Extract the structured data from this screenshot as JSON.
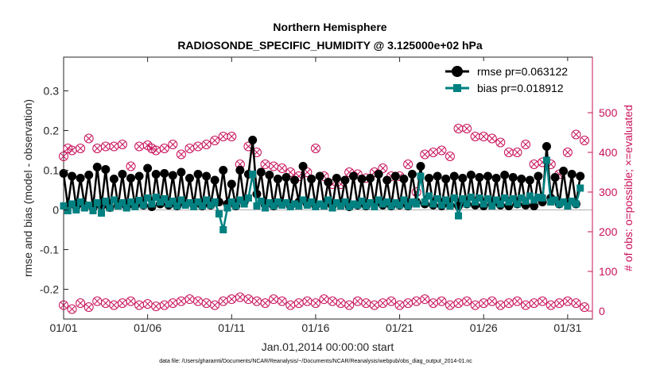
{
  "chart_data": {
    "type": "line",
    "title_line1": "Northern Hemisphere",
    "title_line2": "RADIOSONDE_SPECIFIC_HUMIDITY @ 3.125000e+02 hPa",
    "ylabel_left": "rmse and bias (model - observation)",
    "ylabel_right": "# of obs: o=possible; ×=evaluated",
    "xlabel": "Jan.01,2014 00:00:00 start",
    "footer": "data file: /Users/gharamti/Documents/NCAR/Reanalysis/~/Documents/NCAR/Reanalysis/webpub/obs_diag_output_2014-01.nc",
    "xlim": [
      0,
      31
    ],
    "ylim_left": [
      -0.275,
      0.385
    ],
    "ylim_right": [
      -20,
      640
    ],
    "x_tick_labels": [
      "01/01",
      "01/06",
      "01/11",
      "01/16",
      "01/21",
      "01/26",
      "01/31"
    ],
    "x_tick_positions": [
      0,
      5,
      10,
      15,
      20,
      25,
      30
    ],
    "y_left_ticks": [
      "-0.2",
      "-0.1",
      "0",
      "0.1",
      "0.2",
      "0.3"
    ],
    "y_left_tick_values": [
      -0.2,
      -0.1,
      0,
      0.1,
      0.2,
      0.3
    ],
    "y_right_ticks": [
      "0",
      "100",
      "200",
      "300",
      "400",
      "500"
    ],
    "y_right_tick_values": [
      0,
      100,
      200,
      300,
      400,
      500
    ],
    "legend_rmse": "rmse pr=0.063122",
    "legend_bias": "bias pr=0.018912",
    "colors": {
      "rmse": "#000000",
      "bias": "#008080",
      "obs": "#c8105a",
      "zero": "#b0b0b0"
    },
    "series": [
      {
        "name": "rmse",
        "x": [
          0,
          0.25,
          0.5,
          0.75,
          1,
          1.25,
          1.5,
          1.75,
          2,
          2.25,
          2.5,
          2.75,
          3,
          3.25,
          3.5,
          3.75,
          4,
          4.25,
          4.5,
          4.75,
          5,
          5.25,
          5.5,
          5.75,
          6,
          6.25,
          6.5,
          6.75,
          7,
          7.25,
          7.5,
          7.75,
          8,
          8.25,
          8.5,
          8.75,
          9,
          9.25,
          9.5,
          9.75,
          10,
          10.25,
          10.5,
          10.75,
          11,
          11.25,
          11.5,
          11.75,
          12,
          12.25,
          12.5,
          12.75,
          13,
          13.25,
          13.5,
          13.75,
          14,
          14.25,
          14.5,
          14.75,
          15,
          15.25,
          15.5,
          15.75,
          16,
          16.25,
          16.5,
          16.75,
          17,
          17.25,
          17.5,
          17.75,
          18,
          18.25,
          18.5,
          18.75,
          19,
          19.25,
          19.5,
          19.75,
          20,
          20.25,
          20.5,
          20.75,
          21,
          21.25,
          21.5,
          21.75,
          22,
          22.25,
          22.5,
          22.75,
          23,
          23.25,
          23.5,
          23.75,
          24,
          24.25,
          24.5,
          24.75,
          25,
          25.25,
          25.5,
          25.75,
          26,
          26.25,
          26.5,
          26.75,
          27,
          27.25,
          27.5,
          27.75,
          28,
          28.25,
          28.5,
          28.75,
          29,
          29.25,
          29.5,
          29.75,
          30,
          30.25,
          30.5,
          30.75
        ],
        "values": [
          0.092,
          0.01,
          0.085,
          0.008,
          0.08,
          0.012,
          0.088,
          0.005,
          0.108,
          0.01,
          0.102,
          0.006,
          0.078,
          0.012,
          0.09,
          0.008,
          0.08,
          0.01,
          0.085,
          0.012,
          0.105,
          0.008,
          0.09,
          0.015,
          0.092,
          0.012,
          0.087,
          0.01,
          0.095,
          0.015,
          0.08,
          0.012,
          0.09,
          0.01,
          0.085,
          0.012,
          0.075,
          0.02,
          0.1,
          0.015,
          0.065,
          0.01,
          0.1,
          0.02,
          0.09,
          0.176,
          0.04,
          0.095,
          0.012,
          0.088,
          0.01,
          0.078,
          0.015,
          0.082,
          0.01,
          0.075,
          0.02,
          0.11,
          0.015,
          0.078,
          0.01,
          0.085,
          0.012,
          0.07,
          0.01,
          0.08,
          0.015,
          0.075,
          0.008,
          0.085,
          0.012,
          0.078,
          0.01,
          0.08,
          0.015,
          0.09,
          0.012,
          0.075,
          0.01,
          0.085,
          0.012,
          0.078,
          0.01,
          0.09,
          0.02,
          0.11,
          0.015,
          0.08,
          0.012,
          0.085,
          0.01,
          0.078,
          0.012,
          0.085,
          0.01,
          0.08,
          0.015,
          0.088,
          0.012,
          0.082,
          0.01,
          0.085,
          0.015,
          0.08,
          0.012,
          0.088,
          0.01,
          0.082,
          0.015,
          0.078,
          0.012,
          0.075,
          0.01,
          0.085,
          0.02,
          0.16,
          0.03,
          0.082,
          0.015,
          0.098,
          0.02,
          0.09,
          0.015,
          0.085
        ]
      },
      {
        "name": "bias",
        "x": [
          0,
          0.25,
          0.5,
          0.75,
          1,
          1.25,
          1.5,
          1.75,
          2,
          2.25,
          2.5,
          2.75,
          3,
          3.25,
          3.5,
          3.75,
          4,
          4.25,
          4.5,
          4.75,
          5,
          5.25,
          5.5,
          5.75,
          6,
          6.25,
          6.5,
          6.75,
          7,
          7.25,
          7.5,
          7.75,
          8,
          8.25,
          8.5,
          8.75,
          9,
          9.25,
          9.5,
          9.75,
          10,
          10.25,
          10.5,
          10.75,
          11,
          11.25,
          11.5,
          11.75,
          12,
          12.25,
          12.5,
          12.75,
          13,
          13.25,
          13.5,
          13.75,
          14,
          14.25,
          14.5,
          14.75,
          15,
          15.25,
          15.5,
          15.75,
          16,
          16.25,
          16.5,
          16.75,
          17,
          17.25,
          17.5,
          17.75,
          18,
          18.25,
          18.5,
          18.75,
          19,
          19.25,
          19.5,
          19.75,
          20,
          20.25,
          20.5,
          20.75,
          21,
          21.25,
          21.5,
          21.75,
          22,
          22.25,
          22.5,
          22.75,
          23,
          23.25,
          23.5,
          23.75,
          24,
          24.25,
          24.5,
          24.75,
          25,
          25.25,
          25.5,
          25.75,
          26,
          26.25,
          26.5,
          26.75,
          27,
          27.25,
          27.5,
          27.75,
          28,
          28.25,
          28.5,
          28.75,
          29,
          29.25,
          29.5,
          29.75,
          30,
          30.25,
          30.5,
          30.75
        ],
        "values": [
          0.01,
          -0.002,
          0.015,
          0.0,
          0.02,
          0.005,
          0.012,
          -0.002,
          0.018,
          -0.008,
          0.022,
          0.005,
          0.025,
          0.01,
          0.018,
          0.005,
          0.02,
          0.008,
          0.024,
          0.012,
          0.03,
          0.015,
          0.032,
          0.02,
          0.028,
          0.015,
          0.022,
          0.01,
          0.025,
          0.012,
          0.018,
          0.008,
          0.02,
          0.01,
          0.025,
          0.012,
          0.02,
          -0.01,
          -0.05,
          0.005,
          0.02,
          0.01,
          0.025,
          0.015,
          0.03,
          0.09,
          0.01,
          0.022,
          0.005,
          0.018,
          0.01,
          0.02,
          0.012,
          0.018,
          0.008,
          0.015,
          0.01,
          0.025,
          0.012,
          0.02,
          0.008,
          0.015,
          0.01,
          0.025,
          0.005,
          0.018,
          0.01,
          0.02,
          0.008,
          0.015,
          0.012,
          0.022,
          0.01,
          0.018,
          0.008,
          0.025,
          0.015,
          0.02,
          0.01,
          0.018,
          0.012,
          0.025,
          0.01,
          0.02,
          0.015,
          0.085,
          0.02,
          0.035,
          0.015,
          0.028,
          0.012,
          0.025,
          0.01,
          0.03,
          -0.015,
          0.028,
          0.015,
          0.032,
          0.02,
          0.03,
          0.015,
          0.028,
          0.01,
          0.025,
          0.015,
          0.03,
          0.02,
          0.028,
          0.015,
          0.03,
          0.022,
          0.035,
          0.025,
          0.032,
          0.03,
          0.125,
          0.02,
          0.025,
          0.015,
          0.02,
          0.01,
          0.022,
          0.015,
          0.055
        ]
      },
      {
        "name": "obs possible (upper)",
        "x": [
          0,
          0.25,
          0.5,
          1,
          1.5,
          2,
          2.5,
          3,
          3.5,
          4,
          4.5,
          5,
          5.25,
          5.5,
          6,
          6.5,
          7,
          7.5,
          8,
          8.5,
          9,
          9.5,
          10,
          10.5,
          11,
          11.5,
          12,
          12.5,
          13,
          13.5,
          14,
          14.5,
          15,
          15.5,
          16,
          16.5,
          17,
          17.5,
          18,
          18.5,
          19,
          19.5,
          20,
          20.5,
          21,
          21.5,
          22,
          22.5,
          23,
          23.5,
          24,
          24.5,
          25,
          25.5,
          26,
          26.5,
          27,
          27.5,
          28,
          28.5,
          29,
          29.5,
          30,
          30.5,
          31
        ],
        "values": [
          390,
          410,
          405,
          410,
          435,
          410,
          415,
          415,
          420,
          365,
          415,
          418,
          410,
          405,
          410,
          420,
          395,
          410,
          415,
          420,
          430,
          440,
          440,
          370,
          415,
          400,
          370,
          365,
          360,
          350,
          340,
          350,
          410,
          340,
          320,
          320,
          350,
          345,
          335,
          350,
          360,
          340,
          340,
          370,
          300,
          395,
          400,
          405,
          390,
          460,
          460,
          440,
          440,
          435,
          425,
          400,
          400,
          420,
          370,
          375,
          370,
          345,
          400,
          445,
          430
        ]
      },
      {
        "name": "obs evaluated (lower)",
        "x": [
          0,
          0.5,
          1,
          1.5,
          2,
          2.5,
          3,
          3.5,
          4,
          4.5,
          5,
          5.5,
          6,
          6.5,
          7,
          7.5,
          8,
          8.5,
          9,
          9.5,
          10,
          10.5,
          11,
          11.5,
          12,
          12.5,
          13,
          13.5,
          14,
          14.5,
          15,
          15.5,
          16,
          16.5,
          17,
          17.5,
          18,
          18.5,
          19,
          19.5,
          20,
          20.5,
          21,
          21.5,
          22,
          22.5,
          23,
          23.5,
          24,
          24.5,
          25,
          25.5,
          26,
          26.5,
          27,
          27.5,
          28,
          28.5,
          29,
          29.5,
          30,
          30.5,
          31
        ],
        "values": [
          15,
          5,
          20,
          10,
          25,
          20,
          15,
          20,
          25,
          15,
          18,
          12,
          15,
          20,
          25,
          30,
          25,
          20,
          15,
          25,
          30,
          35,
          30,
          25,
          20,
          30,
          25,
          15,
          20,
          25,
          20,
          30,
          25,
          20,
          15,
          25,
          20,
          15,
          20,
          25,
          15,
          20,
          25,
          30,
          20,
          25,
          15,
          20,
          25,
          15,
          20,
          25,
          15,
          20,
          25,
          15,
          20,
          25,
          15,
          20,
          25,
          20,
          10
        ]
      }
    ]
  }
}
